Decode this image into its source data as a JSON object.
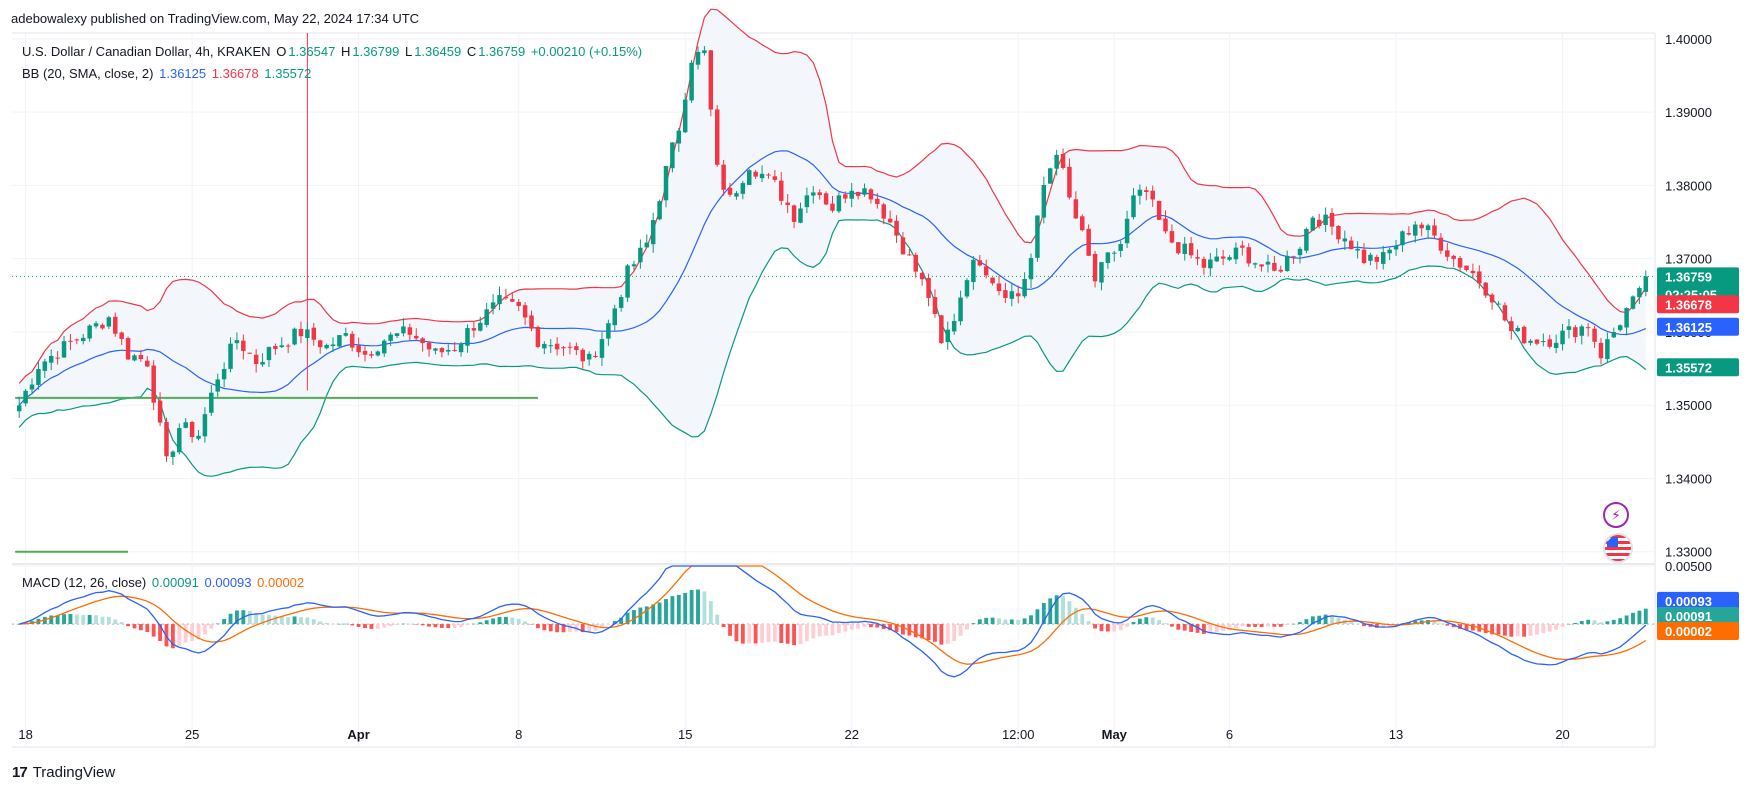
{
  "header": {
    "publisher": "adebowalexy published on TradingView.com, May 22, 2024 17:34 UTC"
  },
  "legend": {
    "symbol": "U.S. Dollar / Canadian Dollar, 4h, KRAKEN",
    "open_label": "O",
    "open": "1.36547",
    "high_label": "H",
    "high": "1.36799",
    "low_label": "L",
    "low": "1.36459",
    "close_label": "C",
    "close": "1.36759",
    "change": "+0.00210 (+0.15%)",
    "bb_title": "BB (20, SMA, close, 2)",
    "bb_basis": "1.36125",
    "bb_upper": "1.36678",
    "bb_lower": "1.35572",
    "macd_title": "MACD (12, 26, close)",
    "macd_hist": "0.00091",
    "macd_line": "0.00093",
    "macd_signal": "0.00002"
  },
  "price_badges": {
    "last_price": "1.36759",
    "countdown": "02:25:05",
    "upper": "1.36678",
    "basis": "1.36125",
    "lower": "1.35572"
  },
  "macd_badges": {
    "line": "0.00093",
    "hist": "0.00091",
    "signal": "0.00002"
  },
  "footer": {
    "brand": "TradingView",
    "brand_mark": "17"
  },
  "colors": {
    "up": "#089981",
    "down": "#f23645",
    "bb_basis": "#2962ff",
    "bb_upper": "#f23645",
    "bb_lower": "#089981",
    "macd_signal": "#ff6d00",
    "fill": "#f3f7fc"
  },
  "icons": [
    "lightning-icon",
    "us-flag-icon"
  ],
  "chart_data": [
    {
      "type": "candlestick",
      "title": "U.S. Dollar / Canadian Dollar, 4h, KRAKEN",
      "y_ticks": [
        "1.40000",
        "1.39000",
        "1.38000",
        "1.37000",
        "1.36000",
        "1.35000",
        "1.34000",
        "1.33000"
      ],
      "ylim": [
        1.3286,
        1.4008
      ],
      "x_ticks": [
        "18",
        "25",
        "Apr",
        "8",
        "15",
        "22",
        "12:00",
        "May",
        "6",
        "13",
        "20"
      ],
      "x_tick_index": [
        1,
        27,
        53,
        78,
        104,
        130,
        156,
        171,
        189,
        215,
        241
      ],
      "num_bars": 255,
      "close_anchors": [
        [
          0,
          1.35
        ],
        [
          3,
          1.3555
        ],
        [
          8,
          1.3585
        ],
        [
          14,
          1.362
        ],
        [
          17,
          1.357
        ],
        [
          20,
          1.356
        ],
        [
          23,
          1.342
        ],
        [
          25,
          1.347
        ],
        [
          28,
          1.346
        ],
        [
          31,
          1.354
        ],
        [
          34,
          1.359
        ],
        [
          37,
          1.356
        ],
        [
          40,
          1.358
        ],
        [
          44,
          1.36
        ],
        [
          48,
          1.358
        ],
        [
          51,
          1.3595
        ],
        [
          54,
          1.357
        ],
        [
          57,
          1.359
        ],
        [
          61,
          1.36
        ],
        [
          65,
          1.357
        ],
        [
          68,
          1.358
        ],
        [
          71,
          1.361
        ],
        [
          75,
          1.364
        ],
        [
          78,
          1.363
        ],
        [
          81,
          1.359
        ],
        [
          85,
          1.358
        ],
        [
          89,
          1.356
        ],
        [
          92,
          1.361
        ],
        [
          95,
          1.368
        ],
        [
          98,
          1.372
        ],
        [
          101,
          1.382
        ],
        [
          103,
          1.388
        ],
        [
          105,
          1.3975
        ],
        [
          107,
          1.398
        ],
        [
          109,
          1.382
        ],
        [
          111,
          1.378
        ],
        [
          114,
          1.383
        ],
        [
          118,
          1.38
        ],
        [
          121,
          1.376
        ],
        [
          124,
          1.38
        ],
        [
          127,
          1.377
        ],
        [
          130,
          1.38
        ],
        [
          133,
          1.379
        ],
        [
          136,
          1.375
        ],
        [
          139,
          1.37
        ],
        [
          142,
          1.365
        ],
        [
          144,
          1.358
        ],
        [
          146,
          1.362
        ],
        [
          148,
          1.368
        ],
        [
          150,
          1.37
        ],
        [
          153,
          1.366
        ],
        [
          156,
          1.365
        ],
        [
          158,
          1.37
        ],
        [
          160,
          1.38
        ],
        [
          162,
          1.385
        ],
        [
          164,
          1.378
        ],
        [
          166,
          1.373
        ],
        [
          168,
          1.367
        ],
        [
          170,
          1.37
        ],
        [
          172,
          1.372
        ],
        [
          174,
          1.378
        ],
        [
          176,
          1.379
        ],
        [
          179,
          1.373
        ],
        [
          182,
          1.371
        ],
        [
          185,
          1.369
        ],
        [
          188,
          1.37
        ],
        [
          191,
          1.371
        ],
        [
          194,
          1.369
        ],
        [
          196,
          1.368
        ],
        [
          198,
          1.37
        ],
        [
          200,
          1.372
        ],
        [
          202,
          1.376
        ],
        [
          204,
          1.375
        ],
        [
          207,
          1.373
        ],
        [
          210,
          1.37
        ],
        [
          213,
          1.37
        ],
        [
          215,
          1.372
        ],
        [
          218,
          1.375
        ],
        [
          221,
          1.373
        ],
        [
          224,
          1.37
        ],
        [
          227,
          1.368
        ],
        [
          230,
          1.365
        ],
        [
          233,
          1.36
        ],
        [
          236,
          1.359
        ],
        [
          239,
          1.359
        ],
        [
          242,
          1.36
        ],
        [
          245,
          1.361
        ],
        [
          247,
          1.357
        ],
        [
          249,
          1.36
        ],
        [
          251,
          1.363
        ],
        [
          253,
          1.365
        ],
        [
          254,
          1.36759
        ]
      ],
      "horizontal_lines": [
        {
          "name": "support",
          "value": 1.351,
          "from_bar": 0,
          "to_bar": 81
        },
        {
          "name": "lower-level",
          "value": 1.33,
          "from_bar": 0,
          "to_bar": 17
        },
        {
          "name": "last-price",
          "value": 1.36759,
          "style": "dotted"
        }
      ],
      "vertical_marker_bar": 45
    },
    {
      "type": "macd",
      "title": "MACD (12, 26, close)",
      "y_ticks": [
        "0.00500"
      ],
      "ylim": [
        -0.008,
        0.005
      ],
      "values": {
        "macd": 0.00093,
        "signal": 2e-05,
        "histogram": 0.00091
      }
    }
  ]
}
